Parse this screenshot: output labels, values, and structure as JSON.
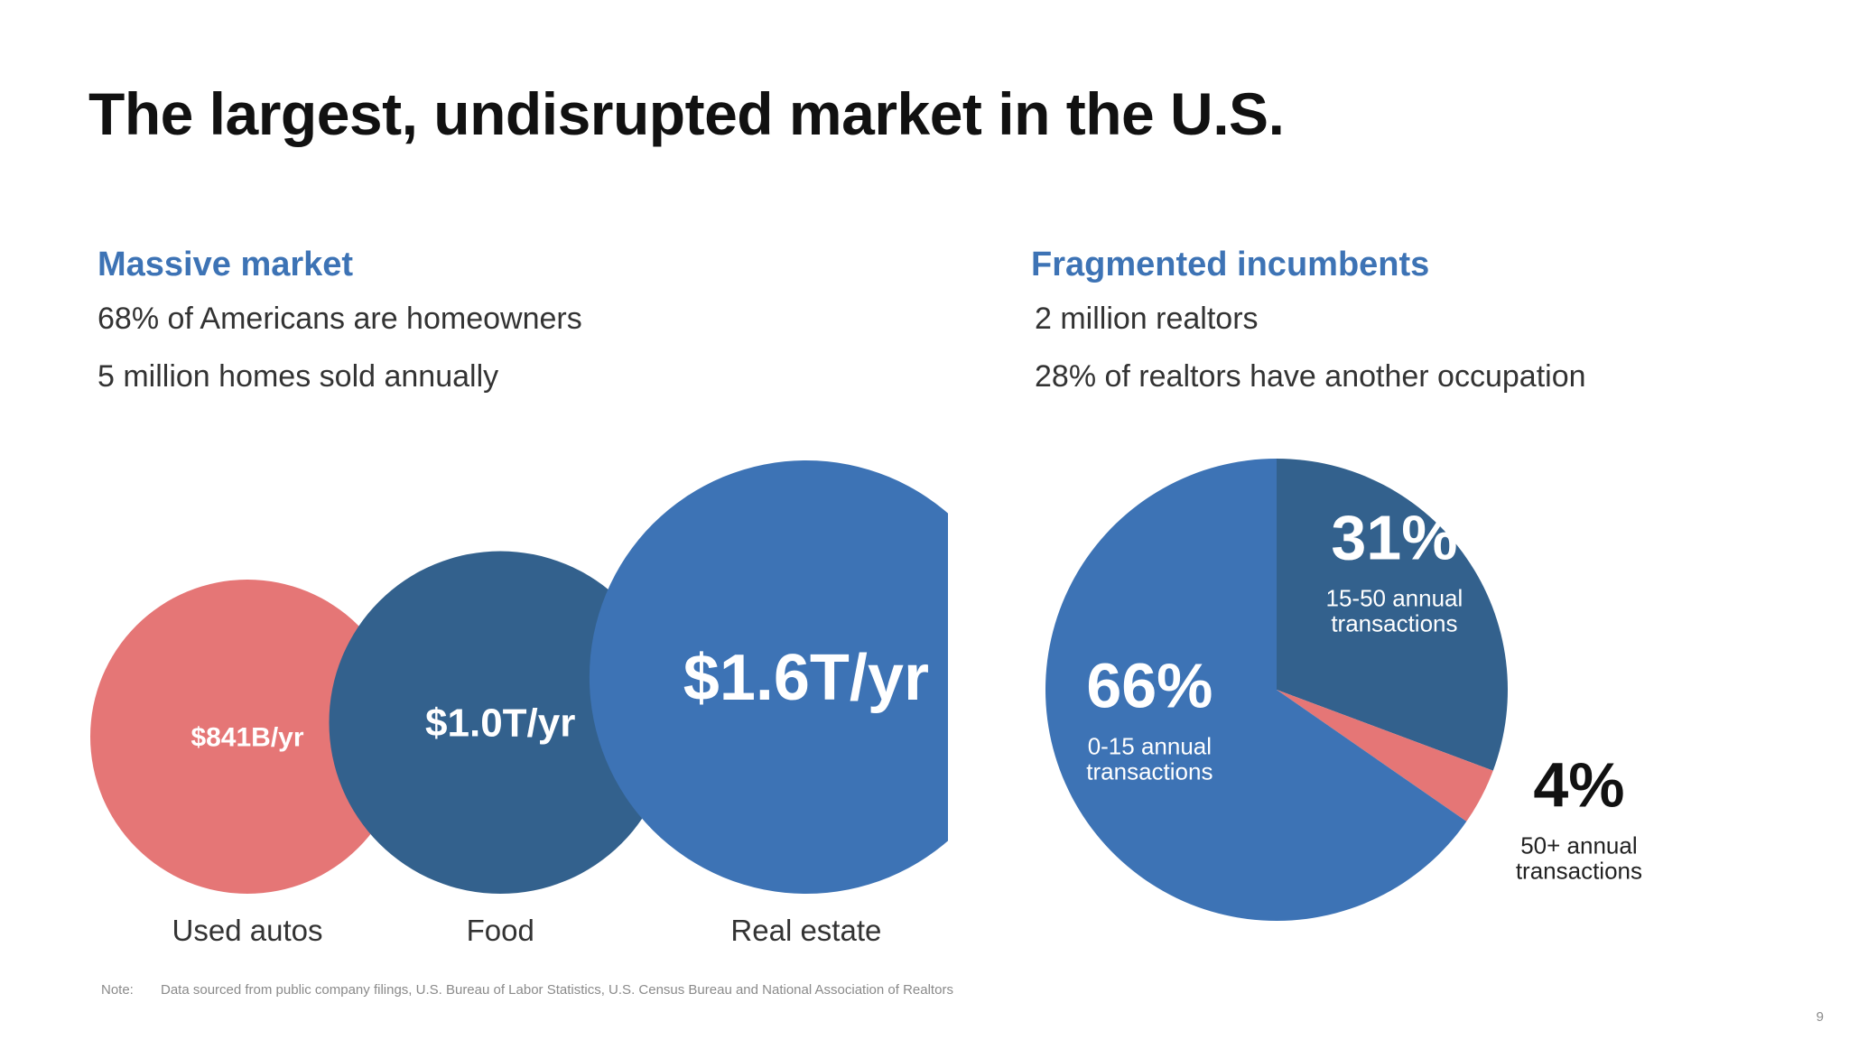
{
  "slide": {
    "title": "The largest, undisrupted market in the U.S.",
    "note_label": "Note:",
    "note_text": "Data sourced from public company filings, U.S. Bureau of Labor Statistics, U.S. Census Bureau and National Association of Realtors",
    "page_number": "9"
  },
  "left": {
    "heading": "Massive market",
    "stats": [
      "68% of Americans are homeowners",
      "5 million homes sold annually"
    ]
  },
  "right": {
    "heading": "Fragmented incumbents",
    "stats": [
      "2 million realtors",
      "28% of realtors have another occupation"
    ]
  },
  "colors": {
    "accent_blue": "#3d73b5",
    "dark_blue": "#33618d",
    "coral": "#e57676",
    "title_text": "#111111",
    "body_text": "#333333"
  },
  "chart_data": [
    {
      "type": "bubble",
      "categories": [
        "Used autos",
        "Food",
        "Real estate"
      ],
      "values": [
        0.841,
        1.0,
        1.6
      ],
      "unit": "trillion USD per year",
      "value_labels": [
        "$841B/yr",
        "$1.0T/yr",
        "$1.6T/yr"
      ],
      "colors": [
        "#e57676",
        "#33618d",
        "#3d73b5"
      ]
    },
    {
      "type": "pie",
      "slices": [
        {
          "value": 31,
          "pct_label": "31%",
          "label": "15-50 annual\ntransactions",
          "color": "#33618d",
          "label_outside": false
        },
        {
          "value": 4,
          "pct_label": "4%",
          "label": "50+ annual\ntransactions",
          "color": "#e57676",
          "label_outside": true
        },
        {
          "value": 66,
          "pct_label": "66%",
          "label": "0-15 annual\ntransactions",
          "color": "#3d73b5",
          "label_outside": false
        }
      ]
    }
  ]
}
